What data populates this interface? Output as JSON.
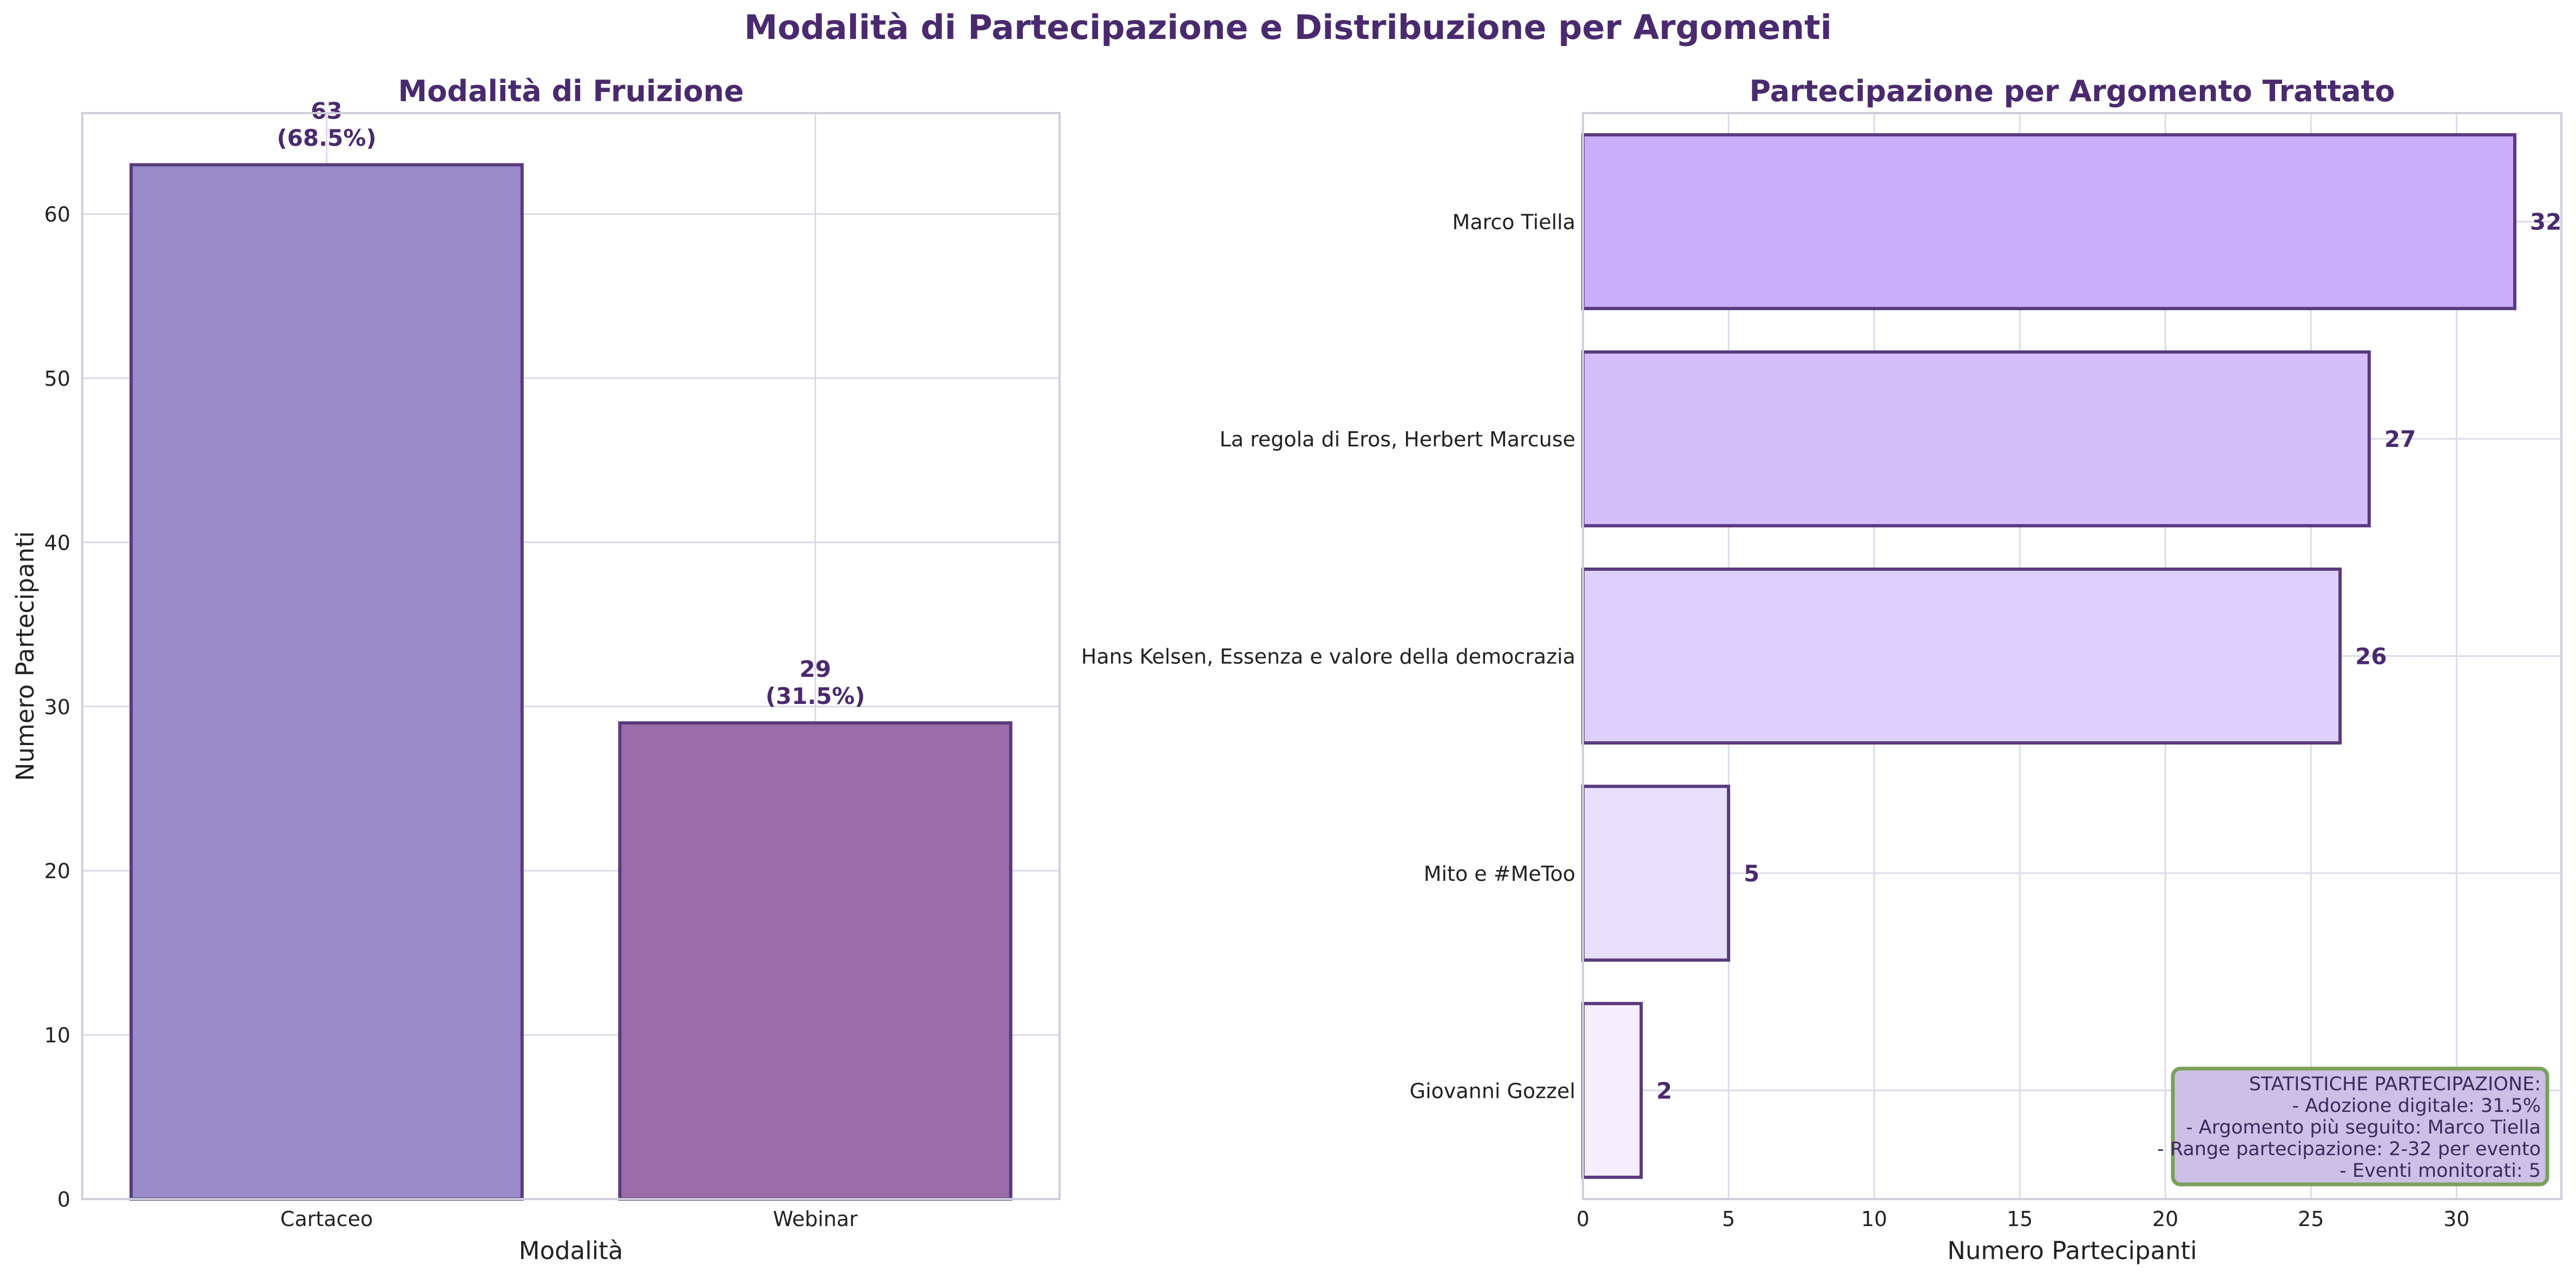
{
  "figure_title": "Modalità di Partecipazione e Distribuzione per Argomenti",
  "colors": {
    "title": "#4a2a6e",
    "bar_edge": "#5a3a7e",
    "grid": "#dcdaea",
    "frame": "#cfcfdc",
    "stats_bg": "#cdbfe6",
    "stats_border": "#7aa05a"
  },
  "chart_data": [
    {
      "type": "bar",
      "title": "Modalità di Fruizione",
      "xlabel": "Modalità",
      "ylabel": "Numero Partecipanti",
      "categories": [
        "Cartaceo",
        "Webinar"
      ],
      "values": [
        63,
        29
      ],
      "value_labels": [
        "63",
        "29"
      ],
      "percent_labels": [
        "(68.5%)",
        "(31.5%)"
      ],
      "colors": [
        "#9a8cca",
        "#9a6ca8"
      ],
      "ylim": [
        0,
        66.15
      ],
      "yticks": [
        0,
        10,
        20,
        30,
        40,
        50,
        60
      ],
      "grid": true
    },
    {
      "type": "bar",
      "orientation": "horizontal",
      "title": "Partecipazione per Argomento Trattato",
      "xlabel": "Numero Partecipanti",
      "ylabel": "",
      "categories": [
        "Marco Tiella",
        "La regola di Eros, Herbert Marcuse",
        "Hans Kelsen, Essenza e valore della democrazia",
        "Mito e #MeToo",
        "Giovanni Gozzel"
      ],
      "values": [
        32,
        27,
        26,
        5,
        2
      ],
      "value_labels": [
        "32",
        "27",
        "26",
        "5",
        "2"
      ],
      "colors": [
        "#c8aefb",
        "#d4bffc",
        "#decffc",
        "#e8dffd",
        "#f3effe"
      ],
      "xlim": [
        0,
        33.6
      ],
      "xticks": [
        0,
        5,
        10,
        15,
        20,
        25,
        30
      ],
      "grid": true
    }
  ],
  "stats_box": {
    "lines": [
      "STATISTICHE PARTECIPAZIONE:",
      "- Adozione digitale: 31.5%",
      "- Argomento più seguito: Marco Tiella",
      "- Range partecipazione: 2-32 per evento",
      "- Eventi monitorati: 5"
    ],
    "position": "bottom-right"
  }
}
